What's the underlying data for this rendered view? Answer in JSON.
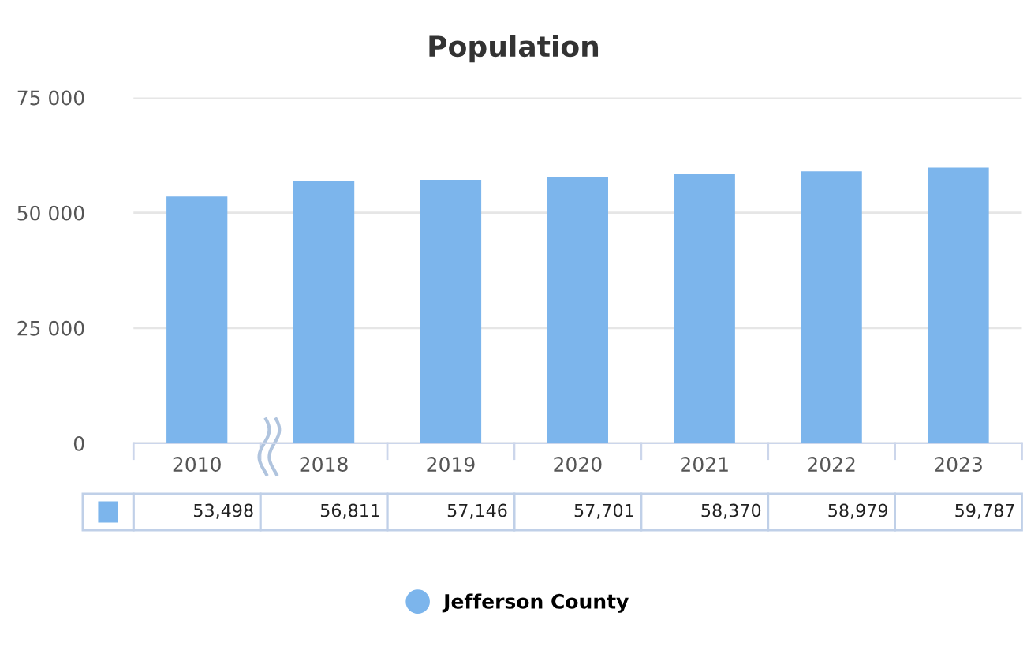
{
  "chart_data": {
    "type": "bar",
    "title": "Population",
    "categories": [
      "2010",
      "2018",
      "2019",
      "2020",
      "2021",
      "2022",
      "2023"
    ],
    "series": [
      {
        "name": "Jefferson County",
        "color": "#7cb5ec",
        "values": [
          53498,
          56811,
          57146,
          57701,
          58370,
          58979,
          59787
        ],
        "value_labels": [
          "53,498",
          "56,811",
          "57,146",
          "57,701",
          "58,370",
          "58,979",
          "59,787"
        ]
      }
    ],
    "ylim": [
      0,
      75000
    ],
    "yticks": [
      0,
      {
        "value": 25000,
        "label": "25 000"
      },
      {
        "value": 50000,
        "label": "50 000"
      },
      {
        "value": 75000,
        "label": "75 000"
      }
    ],
    "grid": "y",
    "legend": "bottom"
  }
}
